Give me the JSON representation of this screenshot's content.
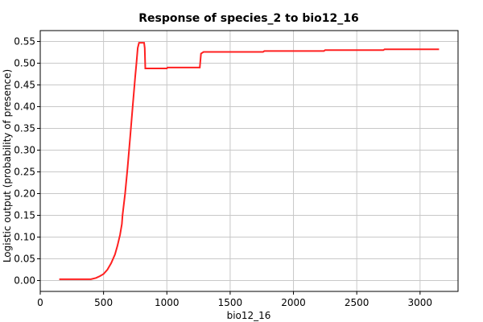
{
  "chart_data": {
    "type": "line",
    "title": "Response of species_2 to bio12_16",
    "xlabel": "bio12_16",
    "ylabel": "Logistic output (probability of presence)",
    "xlim": [
      0,
      3300
    ],
    "ylim": [
      -0.025,
      0.575
    ],
    "x_ticks": [
      0,
      500,
      1000,
      1500,
      2000,
      2500,
      3000
    ],
    "y_ticks": [
      0.0,
      0.05,
      0.1,
      0.15,
      0.2,
      0.25,
      0.3,
      0.35,
      0.4,
      0.45,
      0.5,
      0.55
    ],
    "x_tick_labels": [
      "0",
      "500",
      "1000",
      "1500",
      "2000",
      "2500",
      "3000"
    ],
    "y_tick_labels": [
      "0.00",
      "0.05",
      "0.10",
      "0.15",
      "0.20",
      "0.25",
      "0.30",
      "0.35",
      "0.40",
      "0.45",
      "0.50",
      "0.55"
    ],
    "grid": true,
    "series": [
      {
        "color": "#ff2020",
        "x": [
          150,
          400,
          440,
          470,
          500,
          530,
          560,
          590,
          610,
          630,
          645,
          650,
          670,
          690,
          710,
          730,
          750,
          760,
          770,
          780,
          790,
          800,
          810,
          820,
          825,
          830,
          1000,
          1005,
          1260,
          1270,
          1290,
          1760,
          1770,
          2240,
          2250,
          2710,
          2720,
          3150
        ],
        "y": [
          0.003,
          0.003,
          0.006,
          0.01,
          0.015,
          0.025,
          0.04,
          0.06,
          0.08,
          0.105,
          0.13,
          0.15,
          0.2,
          0.26,
          0.33,
          0.4,
          0.47,
          0.5,
          0.535,
          0.547,
          0.547,
          0.547,
          0.547,
          0.547,
          0.535,
          0.488,
          0.488,
          0.49,
          0.49,
          0.522,
          0.526,
          0.526,
          0.528,
          0.528,
          0.53,
          0.53,
          0.532,
          0.532
        ]
      }
    ]
  }
}
